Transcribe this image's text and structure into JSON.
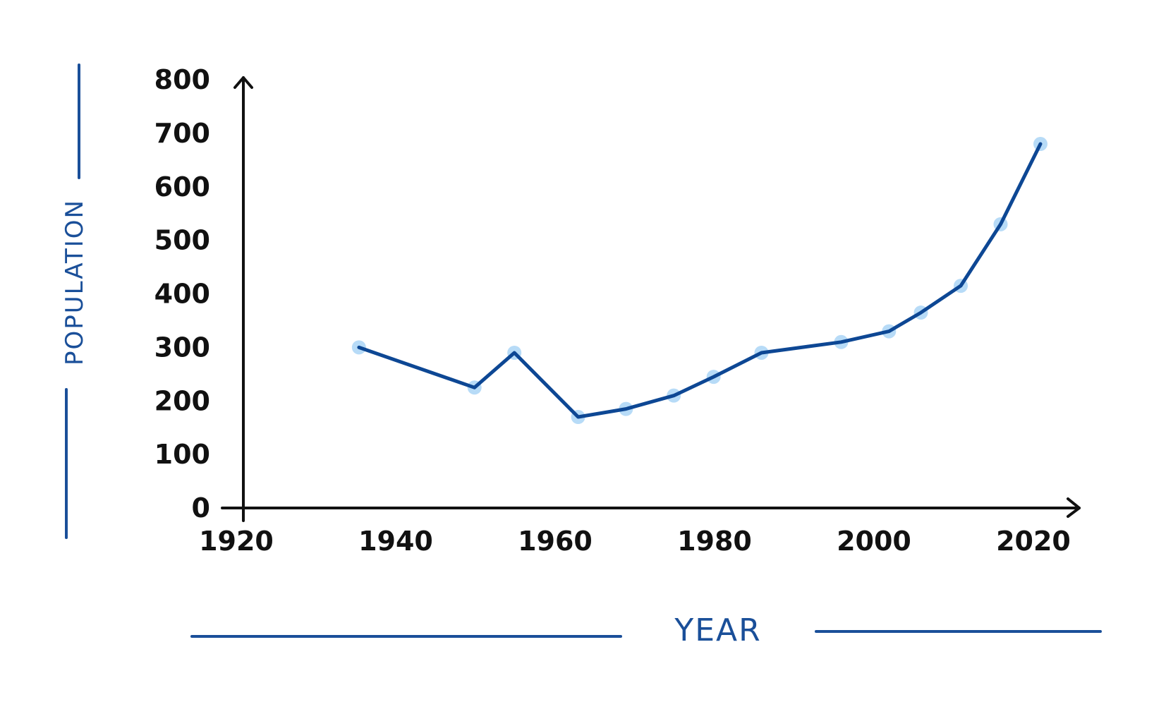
{
  "chart_data": {
    "type": "line",
    "xlabel": "YEAR",
    "ylabel": "POPULATION",
    "xlim": [
      1920,
      2020
    ],
    "ylim": [
      0,
      800
    ],
    "x_ticks": [
      1920,
      1940,
      1960,
      1980,
      2000,
      2020
    ],
    "y_ticks": [
      0,
      100,
      200,
      300,
      400,
      500,
      600,
      700,
      800
    ],
    "grid": false,
    "colors": {
      "line": "#0d4794",
      "points": "#b7dbf7",
      "axis": "#111111",
      "title": "#1a4f99"
    },
    "series": [
      {
        "x": [
          1934.5,
          1949,
          1954,
          1962,
          1968,
          1974,
          1979,
          1985,
          1995,
          2001,
          2005,
          2010,
          2015,
          2020
        ],
        "y": [
          300,
          225,
          290,
          170,
          185,
          210,
          245,
          290,
          310,
          330,
          365,
          415,
          530,
          680
        ]
      }
    ]
  }
}
